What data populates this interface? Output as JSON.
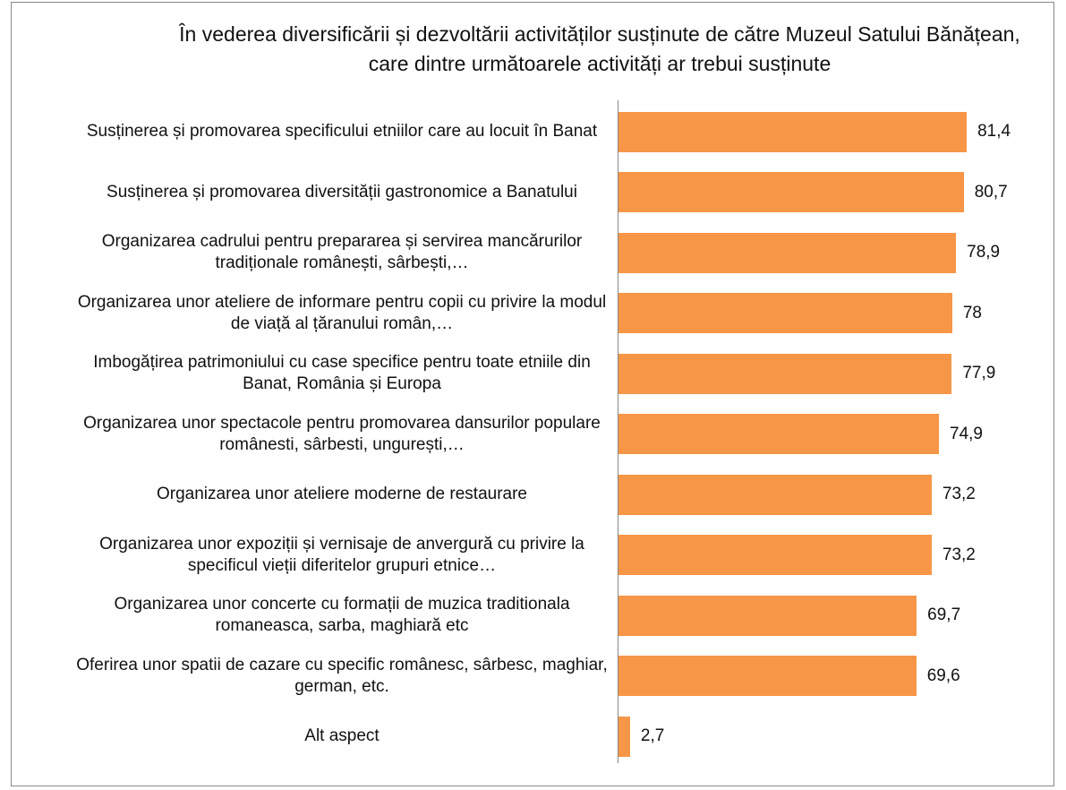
{
  "chart_data": {
    "type": "barh",
    "title": "În vederea diversificării și dezvoltării activităților susținute de către Muzeul Satului Bănățean, care dintre următoarele activități ar trebui susținute",
    "categories": [
      "Susținerea și promovarea specificului etniilor  care au locuit în Banat",
      "Susținerea și promovarea diversității gastronomice a Banatului",
      "Organizarea cadrului pentru prepararea și servirea mancărurilor tradiționale românești, sârbești,…",
      "Organizarea unor ateliere de informare pentru copii cu privire la modul de viață al țăranului român,…",
      "Imbogățirea patrimoniului cu case specifice pentru toate etniile din Banat, România și Europa",
      "Organizarea unor spectacole pentru promovarea dansurilor populare românesti, sârbesti, ungurești,…",
      "Organizarea unor ateliere moderne de restaurare",
      "Organizarea unor expoziții și vernisaje de anvergură cu privire la specificul vieții diferitelor grupuri etnice…",
      "Organizarea unor concerte cu formații de muzica traditionala romaneasca, sarba, maghiară etc",
      "Oferirea unor spatii de cazare cu specific românesc, sârbesc, maghiar, german, etc.",
      "Alt aspect"
    ],
    "values": [
      81.4,
      80.7,
      78.9,
      78,
      77.9,
      74.9,
      73.2,
      73.2,
      69.7,
      69.6,
      2.7
    ],
    "value_labels": [
      "81,4",
      "80,7",
      "78,9",
      "78",
      "77,9",
      "74,9",
      "73,2",
      "73,2",
      "69,7",
      "69,6",
      "2,7"
    ],
    "color": "#f79646",
    "xlim": [
      0,
      100
    ]
  }
}
